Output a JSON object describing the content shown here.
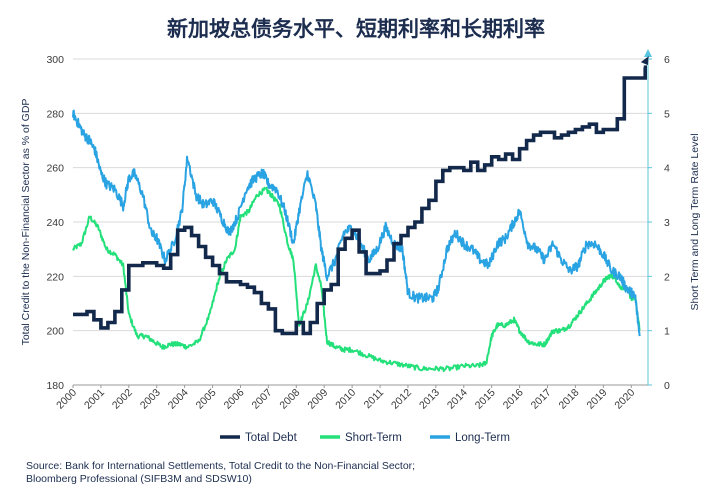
{
  "chart_data": {
    "type": "line",
    "title": "新加坡总债务水平、短期利率和长期利率",
    "ylabel_left": "Total Credit to the Non-Financial Sector as % of GDP",
    "ylabel_right": "Short Term and Long Term Rate Level",
    "ylim_left": [
      180,
      300
    ],
    "ylim_right": [
      0,
      6
    ],
    "yticks_left": [
      "180",
      "200",
      "220",
      "240",
      "260",
      "280",
      "300"
    ],
    "yticks_right": [
      "0",
      "1",
      "2",
      "3",
      "4",
      "5",
      "6"
    ],
    "xlim": [
      2000.0,
      2020.6
    ],
    "xticks": [
      "2000",
      "2001",
      "2002",
      "2003",
      "2004",
      "2005",
      "2006",
      "2007",
      "2008",
      "2009",
      "2010",
      "2011",
      "2012",
      "2013",
      "2014",
      "2015",
      "2016",
      "2017",
      "2018",
      "2019",
      "2020"
    ],
    "legend": "bottom",
    "series": [
      {
        "name": "Total Debt",
        "axis": "left",
        "color": "#13294b",
        "step": true,
        "x": [
          2000.0,
          2000.25,
          2000.5,
          2000.75,
          2001.0,
          2001.25,
          2001.5,
          2001.75,
          2002.0,
          2002.25,
          2002.5,
          2002.75,
          2003.0,
          2003.25,
          2003.5,
          2003.75,
          2004.0,
          2004.25,
          2004.5,
          2004.75,
          2005.0,
          2005.25,
          2005.5,
          2005.75,
          2006.0,
          2006.25,
          2006.5,
          2006.75,
          2007.0,
          2007.25,
          2007.5,
          2007.75,
          2008.0,
          2008.25,
          2008.5,
          2008.75,
          2009.0,
          2009.25,
          2009.5,
          2009.75,
          2010.0,
          2010.25,
          2010.5,
          2010.75,
          2011.0,
          2011.25,
          2011.5,
          2011.75,
          2012.0,
          2012.25,
          2012.5,
          2012.75,
          2013.0,
          2013.25,
          2013.5,
          2013.75,
          2014.0,
          2014.25,
          2014.5,
          2014.75,
          2015.0,
          2015.25,
          2015.5,
          2015.75,
          2016.0,
          2016.25,
          2016.5,
          2016.75,
          2017.0,
          2017.25,
          2017.5,
          2017.75,
          2018.0,
          2018.25,
          2018.5,
          2018.75,
          2019.0,
          2019.25,
          2019.5,
          2019.75,
          2020.0,
          2020.25,
          2020.5
        ],
        "values": [
          206,
          206,
          207,
          204,
          201,
          203,
          207,
          215,
          224,
          224,
          225,
          225,
          224,
          223,
          228,
          237,
          238,
          235,
          231,
          227,
          224,
          221,
          218,
          218,
          217,
          216,
          214,
          210,
          208,
          200,
          199,
          199,
          203,
          199,
          203,
          210,
          215,
          217,
          230,
          234,
          237,
          229,
          221,
          221,
          222,
          226,
          232,
          235,
          238,
          240,
          245,
          248,
          255,
          259,
          260,
          260,
          259,
          262,
          259,
          261,
          264,
          263,
          265,
          263,
          267,
          270,
          272,
          273,
          273,
          271,
          272,
          273,
          274,
          275,
          276,
          273,
          274,
          274,
          278,
          293,
          293,
          293,
          297
        ]
      },
      {
        "name": "Short-Term",
        "axis": "right",
        "color": "#23e07a",
        "x": [
          2000.0,
          2000.3,
          2000.6,
          2000.9,
          2001.2,
          2001.5,
          2001.8,
          2002.0,
          2002.3,
          2002.6,
          2002.9,
          2003.2,
          2003.5,
          2003.8,
          2004.1,
          2004.5,
          2004.9,
          2005.2,
          2005.5,
          2005.8,
          2006.0,
          2006.3,
          2006.6,
          2006.9,
          2007.1,
          2007.4,
          2007.7,
          2007.9,
          2008.1,
          2008.4,
          2008.7,
          2008.9,
          2009.1,
          2009.4,
          2009.7,
          2010.0,
          2010.5,
          2011.0,
          2011.5,
          2012.0,
          2012.5,
          2013.0,
          2013.5,
          2014.0,
          2014.5,
          2014.8,
          2015.0,
          2015.2,
          2015.5,
          2015.8,
          2016.0,
          2016.3,
          2016.6,
          2016.9,
          2017.2,
          2017.5,
          2017.8,
          2018.1,
          2018.4,
          2018.7,
          2019.0,
          2019.2,
          2019.4,
          2019.6,
          2019.8,
          2020.0,
          2020.15,
          2020.3
        ],
        "values": [
          2.5,
          2.6,
          3.1,
          2.9,
          2.5,
          2.4,
          2.2,
          1.3,
          0.9,
          0.9,
          0.8,
          0.7,
          0.75,
          0.75,
          0.7,
          0.8,
          1.3,
          1.9,
          2.3,
          2.5,
          3.1,
          3.2,
          3.5,
          3.6,
          3.5,
          3.3,
          2.6,
          2.3,
          1.1,
          1.5,
          2.2,
          1.8,
          0.8,
          0.7,
          0.65,
          0.65,
          0.55,
          0.45,
          0.4,
          0.35,
          0.3,
          0.3,
          0.3,
          0.35,
          0.35,
          0.4,
          0.9,
          1.1,
          1.1,
          1.2,
          1.0,
          0.8,
          0.75,
          0.75,
          1.0,
          1.0,
          1.1,
          1.3,
          1.5,
          1.7,
          1.9,
          2.0,
          2.0,
          1.8,
          1.8,
          1.6,
          1.6,
          1.0
        ]
      },
      {
        "name": "Long-Term",
        "axis": "right",
        "color": "#2aa3e3",
        "x": [
          2000.0,
          2000.2,
          2000.4,
          2000.6,
          2000.8,
          2001.0,
          2001.2,
          2001.5,
          2001.8,
          2002.0,
          2002.2,
          2002.5,
          2002.8,
          2003.0,
          2003.3,
          2003.6,
          2003.9,
          2004.1,
          2004.4,
          2004.7,
          2005.0,
          2005.3,
          2005.6,
          2005.9,
          2006.2,
          2006.5,
          2006.8,
          2007.0,
          2007.3,
          2007.6,
          2007.9,
          2008.1,
          2008.4,
          2008.7,
          2008.9,
          2009.1,
          2009.4,
          2009.7,
          2010.0,
          2010.3,
          2010.6,
          2010.9,
          2011.2,
          2011.5,
          2011.8,
          2012.0,
          2012.3,
          2012.6,
          2012.9,
          2013.1,
          2013.4,
          2013.7,
          2014.0,
          2014.3,
          2014.6,
          2014.9,
          2015.2,
          2015.5,
          2015.8,
          2016.0,
          2016.3,
          2016.6,
          2016.9,
          2017.2,
          2017.5,
          2017.8,
          2018.1,
          2018.4,
          2018.7,
          2019.0,
          2019.3,
          2019.6,
          2019.8,
          2020.0,
          2020.15,
          2020.3
        ],
        "values": [
          5.0,
          4.8,
          4.6,
          4.5,
          4.3,
          3.9,
          3.7,
          3.6,
          3.3,
          3.8,
          3.9,
          3.5,
          2.8,
          2.7,
          2.3,
          2.6,
          3.2,
          4.2,
          3.5,
          3.3,
          3.4,
          3.1,
          2.8,
          3.1,
          3.6,
          3.8,
          3.9,
          3.7,
          3.6,
          3.2,
          2.6,
          3.2,
          3.9,
          3.3,
          2.5,
          2.0,
          2.3,
          2.8,
          2.9,
          2.6,
          2.3,
          2.5,
          2.9,
          2.6,
          2.5,
          1.7,
          1.6,
          1.6,
          1.6,
          1.8,
          2.5,
          2.8,
          2.6,
          2.5,
          2.3,
          2.2,
          2.6,
          2.7,
          3.0,
          3.2,
          2.6,
          2.5,
          2.3,
          2.6,
          2.3,
          2.1,
          2.2,
          2.6,
          2.6,
          2.4,
          2.1,
          2.0,
          1.8,
          1.7,
          1.6,
          0.9
        ]
      }
    ]
  },
  "source_note": [
    "Source: Bank for International Settlements, Total Credit to the Non-Financial Sector;",
    "Bloomberg Professional (SIFB3M and SDSW10)"
  ]
}
